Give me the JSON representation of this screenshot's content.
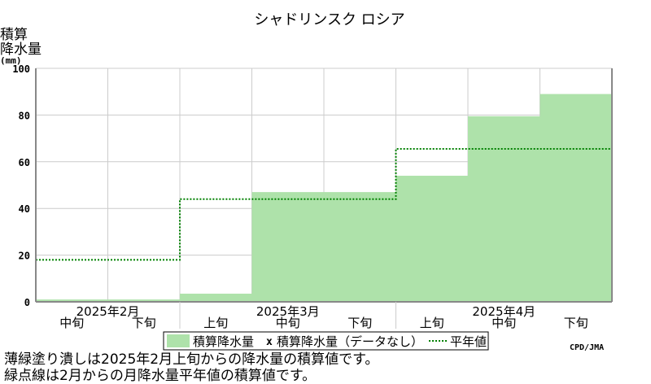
{
  "chart_data": {
    "type": "area",
    "title": "シャドリンスク ロシア",
    "ylabel_lines": [
      "積算",
      "降水量",
      "(mm)"
    ],
    "ylim": [
      0,
      100
    ],
    "yticks": [
      0,
      20,
      40,
      60,
      80,
      100
    ],
    "periods": [
      "中旬",
      "下旬",
      "上旬",
      "中旬",
      "下旬",
      "上旬",
      "中旬",
      "下旬"
    ],
    "month_labels": [
      {
        "label": "2025年2月",
        "start": 0,
        "end": 2
      },
      {
        "label": "2025年3月",
        "start": 2,
        "end": 5
      },
      {
        "label": "2025年4月",
        "start": 5,
        "end": 8
      }
    ],
    "series": [
      {
        "name": "積算降水量",
        "values": [
          1,
          1,
          3.5,
          47,
          47,
          54,
          79.5,
          89
        ],
        "color": "#aee2aa"
      },
      {
        "name": "平年値",
        "values": [
          18,
          18,
          44,
          44,
          44,
          65.5,
          65.5,
          65.5
        ],
        "color": "#008000"
      }
    ],
    "legend": {
      "position": "bottom",
      "area_label": "積算降水量",
      "missing_mark": "x",
      "missing_label": "積算降水量（データなし）",
      "normal_label": "平年値"
    },
    "credit": "CPD/JMA"
  },
  "notes": [
    "薄緑塗り潰しは2025年2月上旬からの降水量の積算値です。",
    "緑点線は2月からの月降水量平年値の積算値です。"
  ]
}
